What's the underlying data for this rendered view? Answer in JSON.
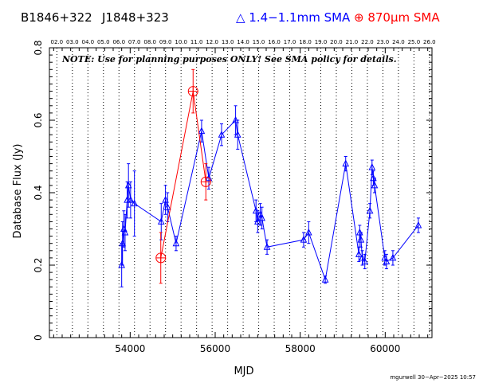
{
  "header": {
    "source": "B1846+322",
    "alt_name": "J1848+323",
    "legend_blue": "△ 1.4−1.1mm SMA",
    "legend_red": "⊕ 870μm SMA",
    "footer": "mgurwell 30−Apr−2025 10:57"
  },
  "chart_data": {
    "type": "scatter",
    "title": "",
    "xlabel": "MJD",
    "ylabel": "Database Flux (Jy)",
    "note": "NOTE: Use for planning purposes ONLY!  See SMA policy for details.",
    "xlim": [
      52100,
      61100
    ],
    "ylim": [
      0,
      0.8
    ],
    "x_ticks": [
      54000,
      56000,
      58000,
      60000
    ],
    "x_tick_labels": [
      "54000",
      "56000",
      "58000",
      "60000"
    ],
    "y_ticks": [
      0,
      0.2,
      0.4,
      0.6,
      0.8
    ],
    "y_tick_labels": [
      "0",
      "0.2",
      "0.4",
      "0.6",
      "0.8"
    ],
    "top_axis_labels": [
      "02.0",
      "03.0",
      "04.0",
      "05.0",
      "06.0",
      "07.0",
      "08.0",
      "09.0",
      "10.0",
      "11.0",
      "12.0",
      "13.0",
      "14.0",
      "15.0",
      "16.0",
      "17.0",
      "18.0",
      "19.0",
      "20.0",
      "21.0",
      "22.0",
      "23.0",
      "24.0",
      "25.0",
      "26.0"
    ],
    "top_axis_first_mjd": 52275,
    "top_axis_step": 365.25,
    "grid": "dotted vertical lines at each year",
    "colors": {
      "blue": "#0000ff",
      "red": "#ff0000",
      "axis": "#000000"
    },
    "series": [
      {
        "name": "1.4−1.1mm SMA",
        "color": "#0000ff",
        "marker": "triangle",
        "points": [
          {
            "x": 53800,
            "y": 0.2,
            "err": 0.06
          },
          {
            "x": 53820,
            "y": 0.26,
            "err": 0.06
          },
          {
            "x": 53850,
            "y": 0.3,
            "err": 0.05
          },
          {
            "x": 53880,
            "y": 0.29,
            "err": 0.05
          },
          {
            "x": 53930,
            "y": 0.38,
            "err": 0.05
          },
          {
            "x": 53960,
            "y": 0.42,
            "err": 0.06
          },
          {
            "x": 54010,
            "y": 0.38,
            "err": 0.05
          },
          {
            "x": 54100,
            "y": 0.37,
            "err": 0.09
          },
          {
            "x": 54730,
            "y": 0.32,
            "err": 0.05
          },
          {
            "x": 54830,
            "y": 0.38,
            "err": 0.04
          },
          {
            "x": 54880,
            "y": 0.36,
            "err": 0.04
          },
          {
            "x": 55080,
            "y": 0.26,
            "err": 0.02
          },
          {
            "x": 55680,
            "y": 0.57,
            "err": 0.03
          },
          {
            "x": 55850,
            "y": 0.44,
            "err": 0.03
          },
          {
            "x": 56150,
            "y": 0.56,
            "err": 0.03
          },
          {
            "x": 56480,
            "y": 0.6,
            "err": 0.04
          },
          {
            "x": 56530,
            "y": 0.56,
            "err": 0.04
          },
          {
            "x": 56960,
            "y": 0.35,
            "err": 0.03
          },
          {
            "x": 57000,
            "y": 0.32,
            "err": 0.03
          },
          {
            "x": 57060,
            "y": 0.34,
            "err": 0.03
          },
          {
            "x": 57100,
            "y": 0.33,
            "err": 0.03
          },
          {
            "x": 57220,
            "y": 0.25,
            "err": 0.02
          },
          {
            "x": 58080,
            "y": 0.27,
            "err": 0.02
          },
          {
            "x": 58200,
            "y": 0.29,
            "err": 0.03
          },
          {
            "x": 58590,
            "y": 0.16,
            "err": 0.01
          },
          {
            "x": 59070,
            "y": 0.48,
            "err": 0.02
          },
          {
            "x": 59380,
            "y": 0.23,
            "err": 0.02
          },
          {
            "x": 59400,
            "y": 0.29,
            "err": 0.02
          },
          {
            "x": 59430,
            "y": 0.27,
            "err": 0.02
          },
          {
            "x": 59460,
            "y": 0.22,
            "err": 0.02
          },
          {
            "x": 59520,
            "y": 0.21,
            "err": 0.02
          },
          {
            "x": 59640,
            "y": 0.35,
            "err": 0.02
          },
          {
            "x": 59690,
            "y": 0.47,
            "err": 0.02
          },
          {
            "x": 59720,
            "y": 0.44,
            "err": 0.02
          },
          {
            "x": 59750,
            "y": 0.42,
            "err": 0.02
          },
          {
            "x": 59990,
            "y": 0.22,
            "err": 0.02
          },
          {
            "x": 60030,
            "y": 0.21,
            "err": 0.02
          },
          {
            "x": 60180,
            "y": 0.22,
            "err": 0.02
          },
          {
            "x": 60780,
            "y": 0.31,
            "err": 0.02
          }
        ]
      },
      {
        "name": "870μm SMA",
        "color": "#ff0000",
        "marker": "circle-plus",
        "points": [
          {
            "x": 54720,
            "y": 0.22,
            "err": 0.07
          },
          {
            "x": 55480,
            "y": 0.68,
            "err": 0.06
          },
          {
            "x": 55780,
            "y": 0.43,
            "err": 0.05
          }
        ]
      }
    ]
  }
}
